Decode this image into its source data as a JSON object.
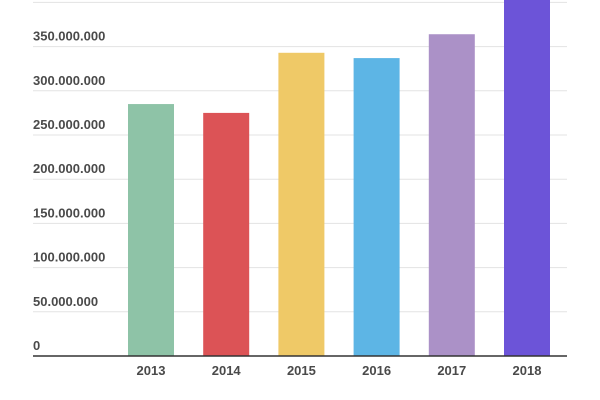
{
  "chart_data": {
    "type": "bar",
    "title": "",
    "xlabel": "",
    "ylabel": "",
    "categories": [
      "2013",
      "2014",
      "2015",
      "2016",
      "2017",
      "2018"
    ],
    "values": [
      285000000,
      275000000,
      343000000,
      337000000,
      364000000,
      405000000
    ],
    "colors": [
      "#8ec3a7",
      "#dc5356",
      "#efc967",
      "#5db5e5",
      "#ab91c7",
      "#6c54d8"
    ],
    "ylim": [
      0,
      400000000
    ],
    "y_ticks": [
      0,
      50000000,
      100000000,
      150000000,
      200000000,
      250000000,
      300000000,
      350000000
    ],
    "y_tick_labels": [
      "0",
      "50.000.000",
      "100.000.000",
      "150.000.000",
      "200.000.000",
      "250.000.000",
      "300.000.000",
      "350.000.000"
    ],
    "grid": true,
    "legend": "none"
  }
}
